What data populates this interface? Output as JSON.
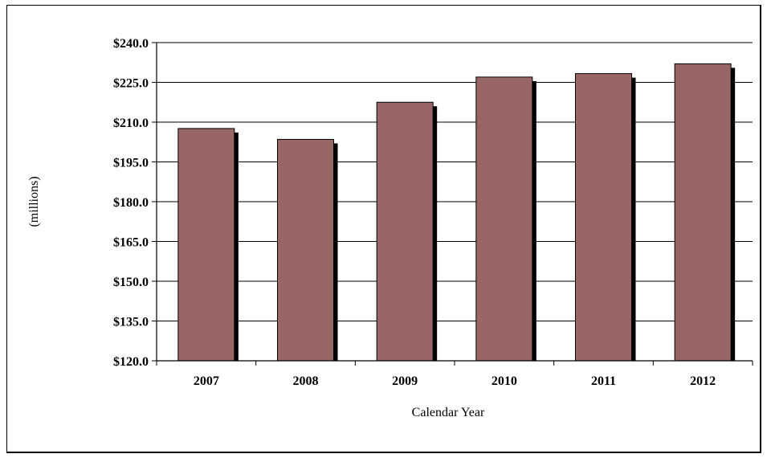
{
  "chart_data": {
    "type": "bar",
    "categories": [
      "2007",
      "2008",
      "2009",
      "2010",
      "2011",
      "2012"
    ],
    "values": [
      207.6,
      203.5,
      217.5,
      227.0,
      228.3,
      232.0
    ],
    "xlabel": "Calendar Year",
    "ylabel": "(millions)",
    "ylim": [
      120,
      240
    ],
    "yticks": [
      120,
      135,
      150,
      165,
      180,
      195,
      210,
      225,
      240
    ],
    "ytick_labels": [
      "$120.0",
      "$135.0",
      "$150.0",
      "$165.0",
      "$180.0",
      "$195.0",
      "$210.0",
      "$225.0",
      "$240.0"
    ],
    "grid": true,
    "legend": "none",
    "colors": {
      "bar": "#996666",
      "shadow": "#000000",
      "grid": "#000000"
    }
  }
}
